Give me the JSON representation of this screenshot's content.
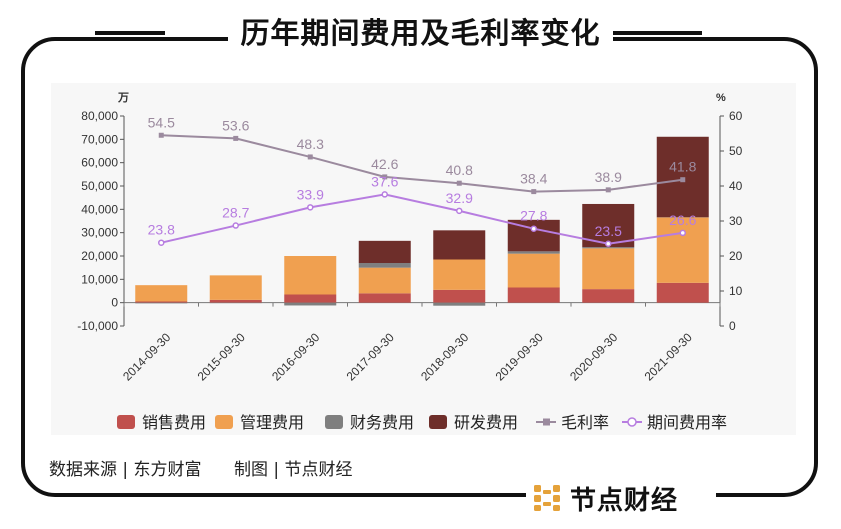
{
  "title": "历年期间费用及毛利率变化",
  "source_text": "数据来源 | 东方财富",
  "credit_text": "制图 | 节点财经",
  "brand_name": "节点财经",
  "colors": {
    "sales": "#c0504d",
    "admin": "#f0a050",
    "finance": "#7f7f7f",
    "rd": "#6e2e2a",
    "gross_margin": "#9b8a9e",
    "expense_rate": "#b77de0",
    "brand": "#e5a23a"
  },
  "chart_data": {
    "type": "bar",
    "stacked": true,
    "categories": [
      "2014-09-30",
      "2015-09-30",
      "2016-09-30",
      "2017-09-30",
      "2018-09-30",
      "2019-09-30",
      "2020-09-30",
      "2021-09-30"
    ],
    "left_axis": {
      "unit": "万",
      "min": -10000,
      "max": 80000,
      "step": 10000,
      "ticks": [
        "-10,000",
        "0",
        "10,000",
        "20,000",
        "30,000",
        "40,000",
        "50,000",
        "60,000",
        "70,000",
        "80,000"
      ]
    },
    "right_axis": {
      "unit": "%",
      "min": 0,
      "max": 60,
      "step": 10,
      "ticks": [
        "0",
        "10",
        "20",
        "30",
        "40",
        "50",
        "60"
      ]
    },
    "series": [
      {
        "name": "销售费用",
        "kind": "bar",
        "values": [
          500,
          1200,
          3500,
          4000,
          5500,
          6500,
          5800,
          8500
        ]
      },
      {
        "name": "管理费用",
        "kind": "bar",
        "values": [
          7000,
          10500,
          16500,
          11000,
          13000,
          14500,
          17500,
          28000
        ]
      },
      {
        "name": "财务费用",
        "kind": "bar",
        "values": [
          -300,
          -200,
          -1200,
          2000,
          -1300,
          1000,
          500,
          100
        ]
      },
      {
        "name": "研发费用",
        "kind": "bar",
        "values": [
          0,
          0,
          0,
          9500,
          12500,
          13500,
          18500,
          34500
        ]
      },
      {
        "name": "毛利率",
        "kind": "line",
        "axis": "right",
        "values": [
          54.5,
          53.6,
          48.3,
          42.6,
          40.8,
          38.4,
          38.9,
          41.8
        ],
        "labels": [
          "54.5",
          "53.6",
          "48.3",
          "42.6",
          "40.8",
          "38.4",
          "38.9",
          "41.8"
        ]
      },
      {
        "name": "期间费用率",
        "kind": "line",
        "axis": "right",
        "values": [
          23.8,
          28.7,
          33.9,
          37.6,
          32.9,
          27.8,
          23.5,
          26.6
        ],
        "labels": [
          "23.8",
          "28.7",
          "33.9",
          "37.6",
          "32.9",
          "27.8",
          "23.5",
          "26.6"
        ]
      }
    ],
    "legend": [
      "销售费用",
      "管理费用",
      "财务费用",
      "研发费用",
      "毛利率",
      "期间费用率"
    ]
  }
}
